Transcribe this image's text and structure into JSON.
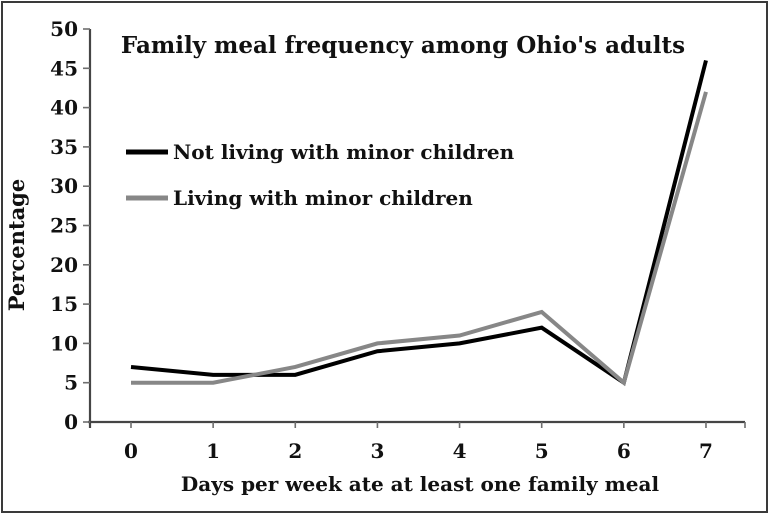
{
  "figure": {
    "background_color": "#ffffff",
    "border_color": "#3a3a3a"
  },
  "chart_data": {
    "type": "line",
    "title": "Family meal frequency among Ohio's adults",
    "xlabel": "Days per week ate at least one family meal",
    "ylabel": "Percentage",
    "categories": [
      "0",
      "1",
      "2",
      "3",
      "4",
      "5",
      "6",
      "7"
    ],
    "y_ticks": [
      0,
      5,
      10,
      15,
      20,
      25,
      30,
      35,
      40,
      45,
      50
    ],
    "ylim": [
      0,
      50
    ],
    "grid": false,
    "legend_position": "upper-left-inside",
    "series": [
      {
        "name": "Not living with minor children",
        "color": "#000000",
        "values": [
          7,
          6,
          6,
          9,
          10,
          12,
          5,
          46
        ]
      },
      {
        "name": "Living with minor children",
        "color": "#878787",
        "values": [
          5,
          5,
          7,
          10,
          11,
          14,
          5,
          42
        ]
      }
    ]
  }
}
